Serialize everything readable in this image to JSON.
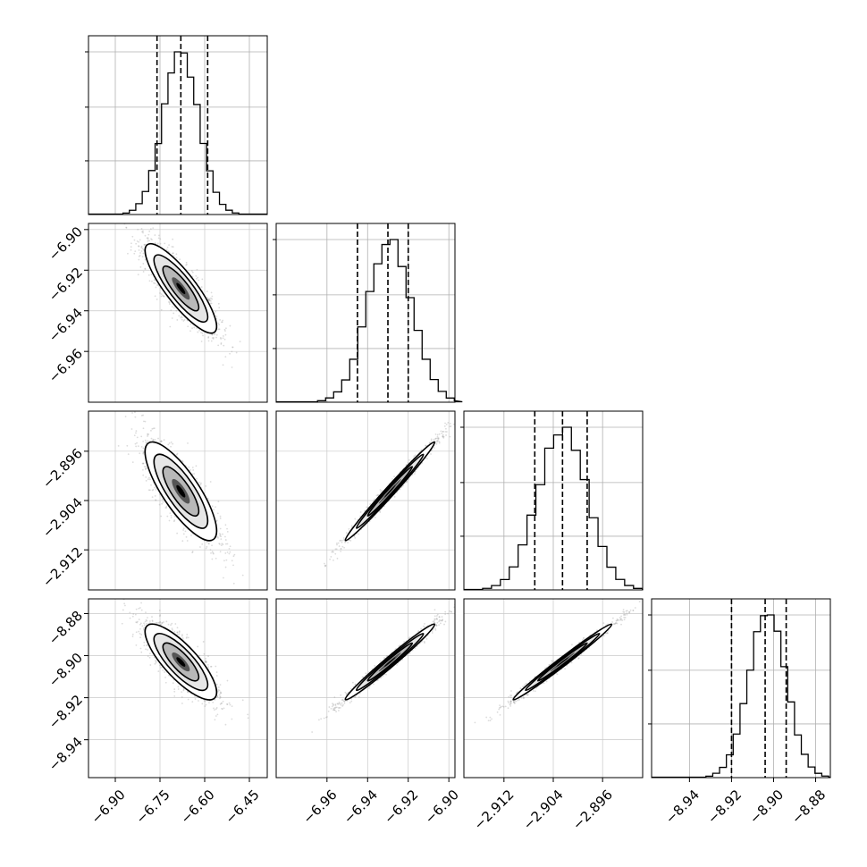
{
  "chart_data": {
    "type": "corner",
    "parameters": [
      {
        "index": 0,
        "range": [
          -6.99,
          -6.39
        ],
        "ticks": [
          -6.9,
          -6.75,
          -6.6,
          -6.45
        ],
        "tick_labels": [
          "−6.90",
          "−6.75",
          "−6.60",
          "−6.45"
        ],
        "mean": -6.68,
        "sigma": 0.06,
        "quantiles": [
          -6.76,
          -6.68,
          -6.59
        ]
      },
      {
        "index": 1,
        "range": [
          -6.985,
          -6.897
        ],
        "ticks": [
          -6.96,
          -6.94,
          -6.92,
          -6.9
        ],
        "tick_labels": [
          "−6.96",
          "−6.94",
          "−6.92",
          "−6.90"
        ],
        "mean": -6.929,
        "sigma": 0.011,
        "quantiles": [
          -6.945,
          -6.93,
          -6.92
        ]
      },
      {
        "index": 2,
        "range": [
          -2.9185,
          -2.8895
        ],
        "ticks": [
          -2.912,
          -2.904,
          -2.896
        ],
        "tick_labels": [
          "−2.912",
          "−2.904",
          "−2.896"
        ],
        "mean": -2.9025,
        "sigma": 0.004,
        "quantiles": [
          -2.907,
          -2.9025,
          -2.8985
        ]
      },
      {
        "index": 3,
        "range": [
          -8.958,
          -8.873
        ],
        "ticks": [
          -8.94,
          -8.92,
          -8.9,
          -8.88
        ],
        "tick_labels": [
          "−8.94",
          "−8.92",
          "−8.90",
          "−8.88"
        ],
        "mean": -8.903,
        "sigma": 0.009,
        "quantiles": [
          -8.92,
          -8.904,
          -8.894
        ]
      }
    ],
    "correlations": [
      {
        "pair": [
          0,
          1
        ],
        "rho": -0.85
      },
      {
        "pair": [
          0,
          2
        ],
        "rho": -0.8
      },
      {
        "pair": [
          0,
          3
        ],
        "rho": -0.8
      },
      {
        "pair": [
          1,
          2
        ],
        "rho": 0.99
      },
      {
        "pair": [
          1,
          3
        ],
        "rho": 0.985
      },
      {
        "pair": [
          2,
          3
        ],
        "rho": 0.99
      }
    ],
    "histogram_bins": 20,
    "quantile_line_style": "dashed",
    "grid": true
  }
}
